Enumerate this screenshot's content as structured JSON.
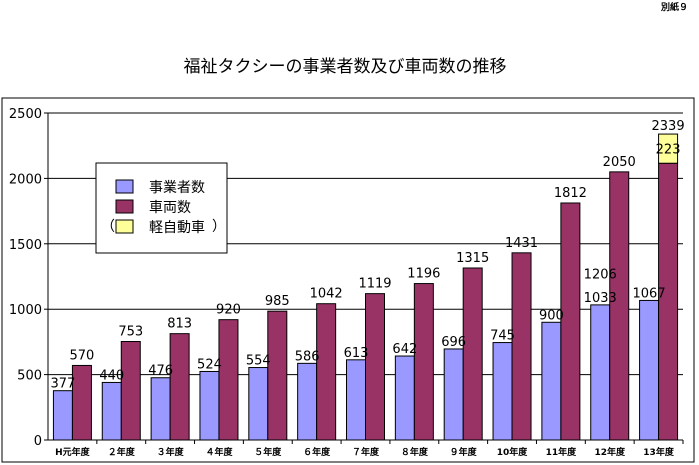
{
  "corner_label": "別紙９",
  "chart_data": {
    "type": "bar",
    "title": "福祉タクシーの事業者数及び車両数の推移",
    "xlabel": "",
    "ylabel": "",
    "ylim": [
      0,
      2500
    ],
    "yticks": [
      0,
      500,
      1000,
      1500,
      2000,
      2500
    ],
    "grid": true,
    "legend_position": "top-left",
    "categories": [
      "H元年度",
      "２年度",
      "３年度",
      "４年度",
      "５年度",
      "６年度",
      "７年度",
      "８年度",
      "９年度",
      "10年度",
      "11年度",
      "12年度",
      "13年度"
    ],
    "series": [
      {
        "name": "事業者数",
        "color": "#9999ff",
        "values": [
          377,
          440,
          476,
          524,
          554,
          586,
          613,
          642,
          696,
          745,
          900,
          1033,
          1067
        ],
        "labels": [
          "377",
          "440",
          "476",
          "524",
          "554",
          "586",
          "613",
          "642",
          "696",
          "745",
          "900",
          "1033",
          "1067"
        ]
      },
      {
        "name": "車両数",
        "color": "#993366",
        "values": [
          570,
          753,
          813,
          920,
          985,
          1042,
          1119,
          1196,
          1315,
          1431,
          1812,
          2050,
          2116
        ],
        "labels": [
          "570",
          "753",
          "813",
          "920",
          "985",
          "1042",
          "1119",
          "1196",
          "1315",
          "1431",
          "1812",
          "2050",
          ""
        ]
      },
      {
        "name": "軽自動車",
        "legend_prefix": "（",
        "legend_suffix": "）",
        "color": "#ffff99",
        "stacked_on": "車両数",
        "values": [
          0,
          0,
          0,
          0,
          0,
          0,
          0,
          0,
          0,
          0,
          0,
          0,
          223
        ],
        "labels": [
          "",
          "",
          "",
          "",
          "",
          "",
          "",
          "",
          "",
          "",
          "",
          "",
          "223"
        ]
      }
    ],
    "extra_labels": [
      {
        "category_index": 11,
        "series": "事業者数",
        "text": "1206",
        "value": 1206
      },
      {
        "category_index": 12,
        "series": "車両数",
        "text": "2339",
        "value": 2339
      }
    ]
  }
}
